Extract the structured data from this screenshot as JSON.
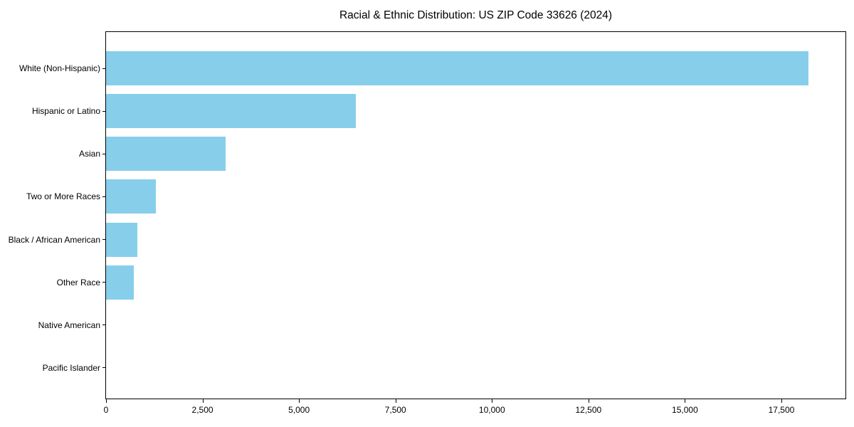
{
  "chart_data": {
    "type": "bar",
    "orientation": "horizontal",
    "title": "Racial & Ethnic Distribution: US ZIP Code 33626 (2024)",
    "categories": [
      "White (Non-Hispanic)",
      "Hispanic or Latino",
      "Asian",
      "Two or More Races",
      "Black / African American",
      "Other Race",
      "Native American",
      "Pacific Islander"
    ],
    "values": [
      18200,
      6470,
      3090,
      1290,
      815,
      725,
      0,
      0
    ],
    "xlabel": "",
    "ylabel": "",
    "xlim": [
      0,
      19160
    ],
    "x_ticks": [
      0,
      2500,
      5000,
      7500,
      10000,
      12500,
      15000,
      17500
    ],
    "x_tick_labels": [
      "0",
      "2,500",
      "5,000",
      "7,500",
      "10,000",
      "12,500",
      "15,000",
      "17,500"
    ],
    "bar_color": "#87CEEB",
    "axis_color": "#000000",
    "text_color": "#000000",
    "background_color": "#ffffff",
    "grid": false,
    "legend": null
  }
}
